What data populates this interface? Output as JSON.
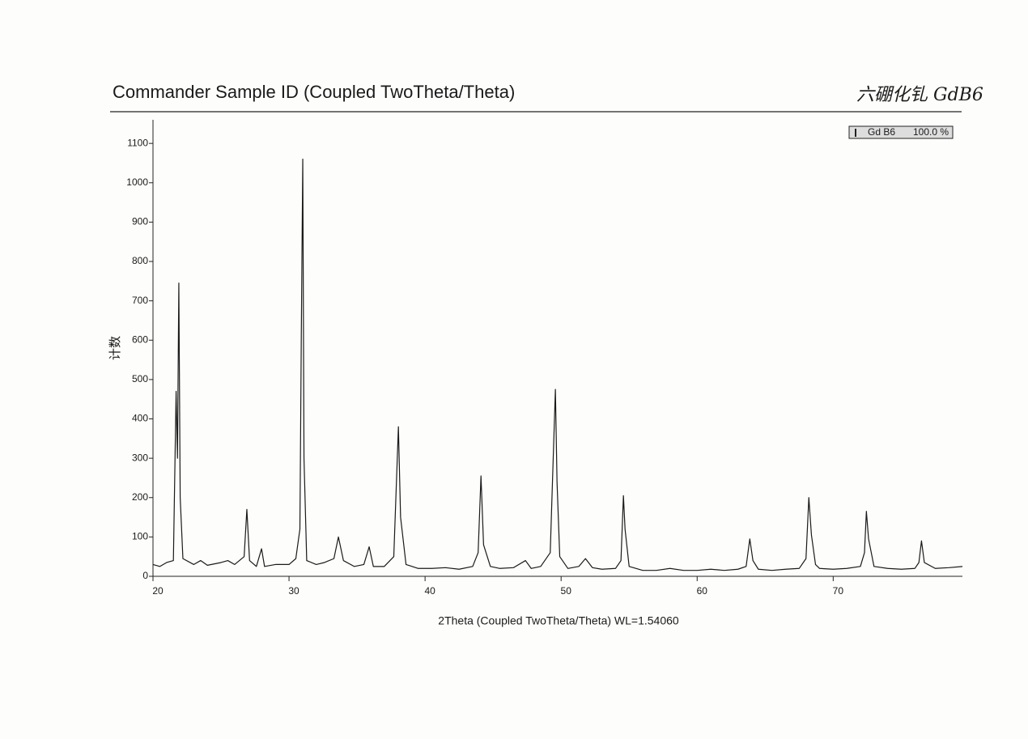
{
  "chart_data": {
    "type": "line",
    "title": "Commander Sample ID (Coupled TwoTheta/Theta)",
    "annotation": "六硼化钆 GdB6",
    "xlabel": "2Theta (Coupled TwoTheta/Theta) WL=1.54060",
    "ylabel": "计数",
    "x": [
      20,
      20.5,
      21,
      21.5,
      21.7,
      21.8,
      21.9,
      22,
      22.2,
      23,
      23.5,
      24,
      25,
      25.5,
      26,
      26.7,
      26.9,
      27.1,
      27.6,
      27.98,
      28.2,
      29,
      30,
      30.5,
      30.8,
      30.9,
      31.01,
      31.1,
      31.3,
      32,
      32.6,
      33.3,
      33.63,
      34,
      34.8,
      35.5,
      35.89,
      36.2,
      37,
      37.7,
      38.04,
      38.2,
      38.6,
      39.5,
      40.5,
      41.5,
      42.5,
      43.5,
      43.9,
      44.11,
      44.3,
      44.8,
      45.5,
      46.5,
      47.38,
      47.8,
      48.5,
      49.2,
      49.58,
      49.7,
      49.9,
      50.5,
      51.3,
      51.79,
      52.3,
      53,
      54,
      54.4,
      54.58,
      54.7,
      55,
      56,
      57,
      58,
      59,
      60,
      61,
      62,
      63,
      63.6,
      63.87,
      64.1,
      64.5,
      65.5,
      66.5,
      67.5,
      68,
      68.21,
      68.4,
      68.7,
      69,
      70,
      71,
      72,
      72.3,
      72.44,
      72.6,
      73,
      74,
      75,
      76,
      76.3,
      76.49,
      76.7,
      77.5,
      78.5,
      79.5
    ],
    "series": [
      {
        "name": "Gd B6",
        "share": "100.0 %",
        "color": "#1a1a1a",
        "values": [
          30,
          25,
          35,
          40,
          470,
          300,
          745,
          200,
          45,
          30,
          40,
          28,
          35,
          40,
          30,
          50,
          170,
          40,
          25,
          70,
          25,
          30,
          30,
          45,
          120,
          600,
          1060,
          300,
          40,
          30,
          35,
          45,
          100,
          40,
          25,
          30,
          75,
          25,
          25,
          50,
          380,
          150,
          30,
          20,
          20,
          22,
          18,
          25,
          60,
          255,
          80,
          25,
          20,
          22,
          40,
          20,
          25,
          60,
          475,
          240,
          50,
          20,
          25,
          45,
          22,
          18,
          20,
          40,
          205,
          120,
          25,
          15,
          15,
          20,
          15,
          15,
          18,
          15,
          18,
          25,
          95,
          40,
          18,
          15,
          18,
          20,
          45,
          200,
          105,
          30,
          20,
          18,
          20,
          25,
          60,
          165,
          95,
          25,
          20,
          18,
          20,
          35,
          90,
          35,
          20,
          22,
          25
        ]
      }
    ],
    "xlim": [
      20,
      79.5
    ],
    "ylim": [
      0,
      1160
    ],
    "xticks": [
      20,
      30,
      40,
      50,
      60,
      70
    ],
    "yticks": [
      0,
      100,
      200,
      300,
      400,
      500,
      600,
      700,
      800,
      900,
      1000,
      1100
    ]
  }
}
